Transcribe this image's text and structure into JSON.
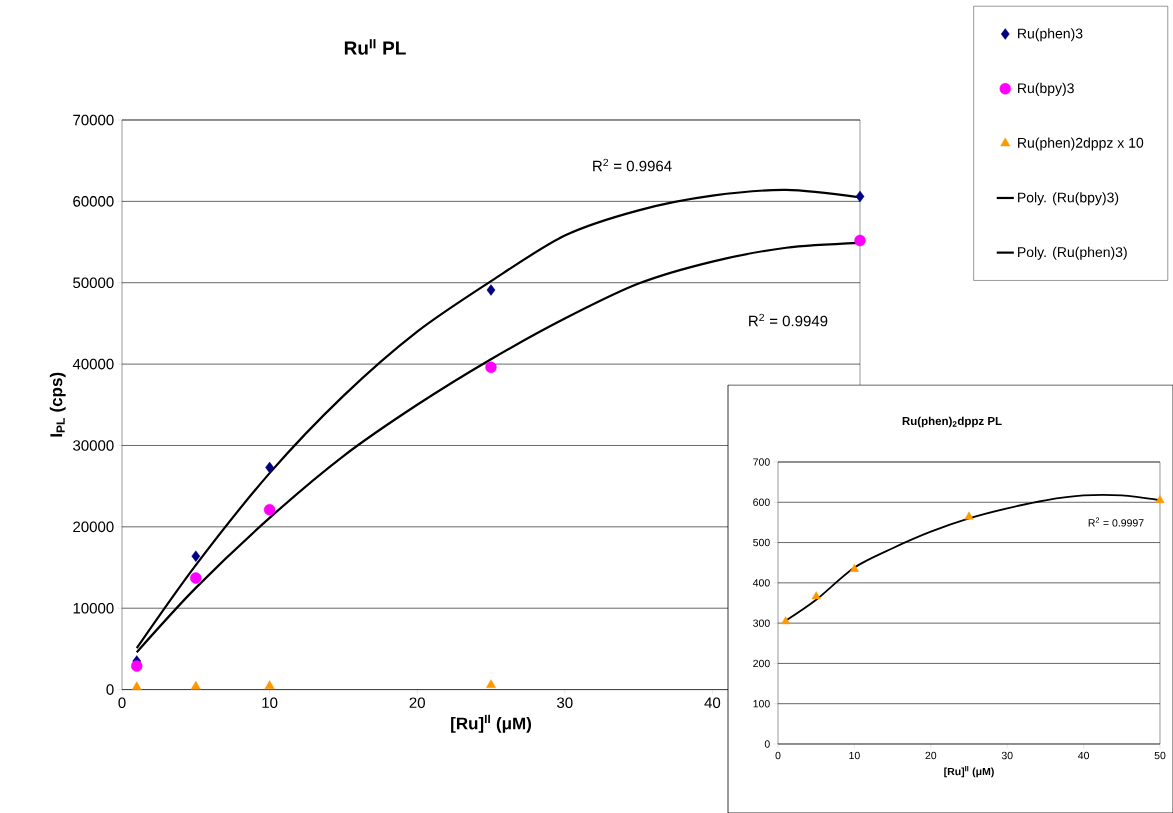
{
  "chart_data": [
    {
      "type": "scatter",
      "title": "**Ru$^{II}$ PL**",
      "xlabel": "[Ru]$^{II}$ (μM)",
      "ylabel": "I$_{PL}$ (cps)",
      "xlim": [
        0,
        50
      ],
      "xticks": [
        0,
        10,
        20,
        30,
        40
      ],
      "ylim": [
        0,
        70000
      ],
      "yticks": [
        0,
        10000,
        20000,
        30000,
        40000,
        50000,
        60000,
        70000
      ],
      "grid": "y",
      "legend": "top right",
      "annotations": [
        "R$^{2}$ = 0.9964",
        "R$^{2}$ = 0.9949"
      ],
      "series": [
        {
          "name": "Ru(phen)3",
          "marker": "diamond",
          "color": "#000080",
          "x": [
            1,
            5,
            10,
            25,
            50
          ],
          "values": [
            3500,
            16400,
            27300,
            49100,
            60600
          ]
        },
        {
          "name": "Ru(bpy)3",
          "marker": "circle",
          "color": "#ff00ff",
          "x": [
            1,
            5,
            10,
            25,
            50
          ],
          "values": [
            2900,
            13700,
            22100,
            39600,
            55200
          ]
        },
        {
          "name": "Ru(phen)2dppz x 10",
          "marker": "triangle",
          "color": "#ff9900",
          "x": [
            1,
            5,
            10,
            25
          ],
          "values": [
            305,
            365,
            435,
            565
          ]
        },
        {
          "name": "Poly. (Ru(bpy)3)",
          "type": "line",
          "marker": "none",
          "color": "#000000",
          "x": [
            1,
            5,
            10,
            15,
            20,
            25,
            30,
            35,
            40,
            45,
            50
          ],
          "values": [
            4600,
            12500,
            21100,
            28700,
            35000,
            40600,
            45600,
            49900,
            52600,
            54300,
            54900
          ]
        },
        {
          "name": "Poly. (Ru(phen)3)",
          "type": "line",
          "marker": "none",
          "color": "#000000",
          "x": [
            1,
            5,
            10,
            15,
            20,
            25,
            30,
            35,
            40,
            45,
            50
          ],
          "values": [
            5100,
            15300,
            26600,
            36100,
            44000,
            50200,
            55800,
            58900,
            60700,
            61400,
            60500
          ]
        }
      ]
    },
    {
      "type": "scatter",
      "title": "**Ru(phen)$_{2}$dppz PL**",
      "xlabel": "[Ru]$^{II}$ (μM)",
      "xlim": [
        0,
        50
      ],
      "xticks": [
        0,
        10,
        20,
        30,
        40,
        50
      ],
      "ylim": [
        0,
        700
      ],
      "yticks": [
        0,
        100,
        200,
        300,
        400,
        500,
        600,
        700
      ],
      "grid": "y",
      "annotations": [
        "R$^{2}$ = 0.9997"
      ],
      "series": [
        {
          "marker": "triangle",
          "color": "#ff9900",
          "x": [
            1,
            5,
            10,
            25,
            50
          ],
          "values": [
            304,
            366,
            434,
            564,
            605
          ]
        },
        {
          "type": "line",
          "marker": "none",
          "color": "#000000",
          "x": [
            1,
            5,
            10,
            15,
            20,
            25,
            30,
            35,
            40,
            45,
            50
          ],
          "values": [
            306,
            358,
            438,
            486,
            527,
            560,
            585,
            605,
            617,
            617,
            605
          ]
        }
      ]
    }
  ]
}
